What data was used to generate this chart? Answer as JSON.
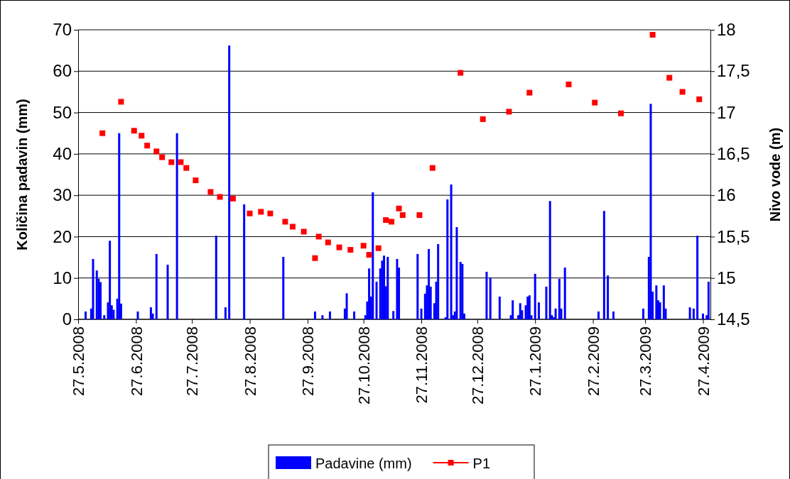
{
  "chart_data": {
    "type": "bar",
    "ylabel": "Količina padavin (mm)",
    "y2label": "Nivo vode (m)",
    "xlim": [
      "2008-05-27",
      "2009-05-01"
    ],
    "xticks": [
      {
        "value": "2008-05-27",
        "label": "27.5.2008"
      },
      {
        "value": "2008-06-27",
        "label": "27.6.2008"
      },
      {
        "value": "2008-07-27",
        "label": "27.7.2008"
      },
      {
        "value": "2008-08-27",
        "label": "27.8.2008"
      },
      {
        "value": "2008-09-27",
        "label": "27.9.2008"
      },
      {
        "value": "2008-10-27",
        "label": "27.10.2008"
      },
      {
        "value": "2008-11-27",
        "label": "27.11.2008"
      },
      {
        "value": "2008-12-27",
        "label": "27.12.2008"
      },
      {
        "value": "2009-01-27",
        "label": "27.1.2009"
      },
      {
        "value": "2009-02-27",
        "label": "27.2.2009"
      },
      {
        "value": "2009-03-27",
        "label": "27.3.2009"
      },
      {
        "value": "2009-04-27",
        "label": "27.4.2009"
      }
    ],
    "ylim": [
      0,
      70
    ],
    "yticks": [
      0,
      10,
      20,
      30,
      40,
      50,
      60,
      70
    ],
    "y2lim": [
      14.5,
      18
    ],
    "y2ticks": [
      {
        "value": 14.5,
        "label": "14,5"
      },
      {
        "value": 15,
        "label": "15"
      },
      {
        "value": 15.5,
        "label": "15,5"
      },
      {
        "value": 16,
        "label": "16"
      },
      {
        "value": 16.5,
        "label": "16,5"
      },
      {
        "value": 17,
        "label": "17"
      },
      {
        "value": 17.5,
        "label": "17,5"
      },
      {
        "value": 18,
        "label": "18"
      }
    ],
    "grid": "y",
    "legend": "bottom",
    "series": [
      {
        "name": "Padavine (mm)",
        "color": "#0000ff",
        "x": [
          "2008-05-31",
          "2008-06-03",
          "2008-06-04",
          "2008-06-06",
          "2008-06-07",
          "2008-06-08",
          "2008-06-10",
          "2008-06-12",
          "2008-06-13",
          "2008-06-14",
          "2008-06-15",
          "2008-06-17",
          "2008-06-18",
          "2008-06-19",
          "2008-06-28",
          "2008-07-05",
          "2008-07-06",
          "2008-07-08",
          "2008-07-14",
          "2008-07-19",
          "2008-08-09",
          "2008-08-14",
          "2008-08-16",
          "2008-08-24",
          "2008-09-14",
          "2008-10-01",
          "2008-10-05",
          "2008-10-09",
          "2008-10-17",
          "2008-10-18",
          "2008-10-22",
          "2008-10-28",
          "2008-10-29",
          "2008-10-30",
          "2008-10-31",
          "2008-11-01",
          "2008-11-03",
          "2008-11-05",
          "2008-11-06",
          "2008-11-07",
          "2008-11-08",
          "2008-11-09",
          "2008-11-12",
          "2008-11-14",
          "2008-11-15",
          "2008-11-25",
          "2008-11-27",
          "2008-11-29",
          "2008-11-30",
          "2008-12-01",
          "2008-12-02",
          "2008-12-04",
          "2008-12-05",
          "2008-12-06",
          "2008-12-10",
          "2008-12-11",
          "2008-12-13",
          "2008-12-14",
          "2008-12-15",
          "2008-12-16",
          "2008-12-18",
          "2008-12-19",
          "2008-12-20",
          "2009-01-01",
          "2009-01-03",
          "2009-01-08",
          "2009-01-14",
          "2009-01-15",
          "2009-01-18",
          "2009-01-19",
          "2009-01-20",
          "2009-01-22",
          "2009-01-23",
          "2009-01-24",
          "2009-01-25",
          "2009-01-27",
          "2009-01-29",
          "2009-02-02",
          "2009-02-04",
          "2009-02-05",
          "2009-02-06",
          "2009-02-07",
          "2009-02-09",
          "2009-02-10",
          "2009-02-12",
          "2009-03-02",
          "2009-03-05",
          "2009-03-07",
          "2009-03-10",
          "2009-03-26",
          "2009-03-29",
          "2009-03-30",
          "2009-03-31",
          "2009-04-02",
          "2009-04-03",
          "2009-04-04",
          "2009-04-06",
          "2009-04-07",
          "2009-04-20",
          "2009-04-22",
          "2009-04-24",
          "2009-04-27",
          "2009-04-29",
          "2009-04-30"
        ],
        "values": [
          1.9,
          2.6,
          14.6,
          11.8,
          9.8,
          9,
          1,
          4.1,
          19,
          3.4,
          2.3,
          5,
          45,
          3.8,
          1.9,
          2.9,
          1.4,
          15.8,
          13.2,
          45,
          20.2,
          2.9,
          66.2,
          27.8,
          15.1,
          1.9,
          1,
          1.9,
          2.6,
          6.3,
          1.9,
          1,
          4.3,
          12.3,
          5.5,
          30.7,
          9.1,
          12.3,
          14.2,
          15.4,
          8,
          15.1,
          2,
          14.6,
          12.5,
          15.8,
          2.6,
          6.2,
          8.2,
          17,
          7.9,
          3.9,
          9.1,
          18.2,
          0.5,
          29,
          32.6,
          1,
          1.9,
          22.3,
          13.9,
          13.4,
          1.4,
          11.5,
          10.1,
          5.5,
          1,
          4.6,
          1,
          3.9,
          2.2,
          3.4,
          5.5,
          5.8,
          1,
          11,
          4.1,
          7.9,
          28.6,
          1,
          0.5,
          2.6,
          9.8,
          2.6,
          12.5,
          1.9,
          26.2,
          10.6,
          1.9,
          2.6,
          15.1,
          52.1,
          6.7,
          8.2,
          4.6,
          4.1,
          8.2,
          2.6,
          2.9,
          2.6,
          20.2,
          1.4,
          1,
          9.1
        ]
      },
      {
        "name": "P1",
        "type": "scatter",
        "axis": "y2",
        "color": "#ff0000",
        "marker": "square",
        "x": [
          "2008-06-09",
          "2008-06-19",
          "2008-06-26",
          "2008-06-30",
          "2008-07-03",
          "2008-07-08",
          "2008-07-11",
          "2008-07-16",
          "2008-07-21",
          "2008-07-24",
          "2008-07-29",
          "2008-08-06",
          "2008-08-11",
          "2008-08-18",
          "2008-08-27",
          "2008-09-02",
          "2008-09-07",
          "2008-09-15",
          "2008-09-19",
          "2008-09-25",
          "2008-10-01",
          "2008-10-03",
          "2008-10-08",
          "2008-10-14",
          "2008-10-20",
          "2008-10-27",
          "2008-10-30",
          "2008-11-04",
          "2008-11-08",
          "2008-11-11",
          "2008-11-15",
          "2008-11-17",
          "2008-11-26",
          "2008-12-03",
          "2008-12-18",
          "2008-12-30",
          "2009-01-13",
          "2009-01-24",
          "2009-02-14",
          "2009-02-28",
          "2009-03-14",
          "2009-03-31",
          "2009-04-09",
          "2009-04-16",
          "2009-04-25"
        ],
        "values": [
          16.75,
          17.13,
          16.78,
          16.72,
          16.6,
          16.53,
          16.46,
          16.4,
          16.4,
          16.33,
          16.18,
          16.04,
          15.98,
          15.96,
          15.78,
          15.8,
          15.78,
          15.68,
          15.62,
          15.56,
          15.24,
          15.5,
          15.43,
          15.37,
          15.34,
          15.39,
          15.28,
          15.36,
          15.7,
          15.68,
          15.84,
          15.76,
          15.76,
          16.33,
          17.48,
          16.92,
          17.01,
          17.24,
          17.34,
          17.12,
          16.99,
          17.94,
          17.42,
          17.25,
          17.16
        ]
      }
    ]
  }
}
